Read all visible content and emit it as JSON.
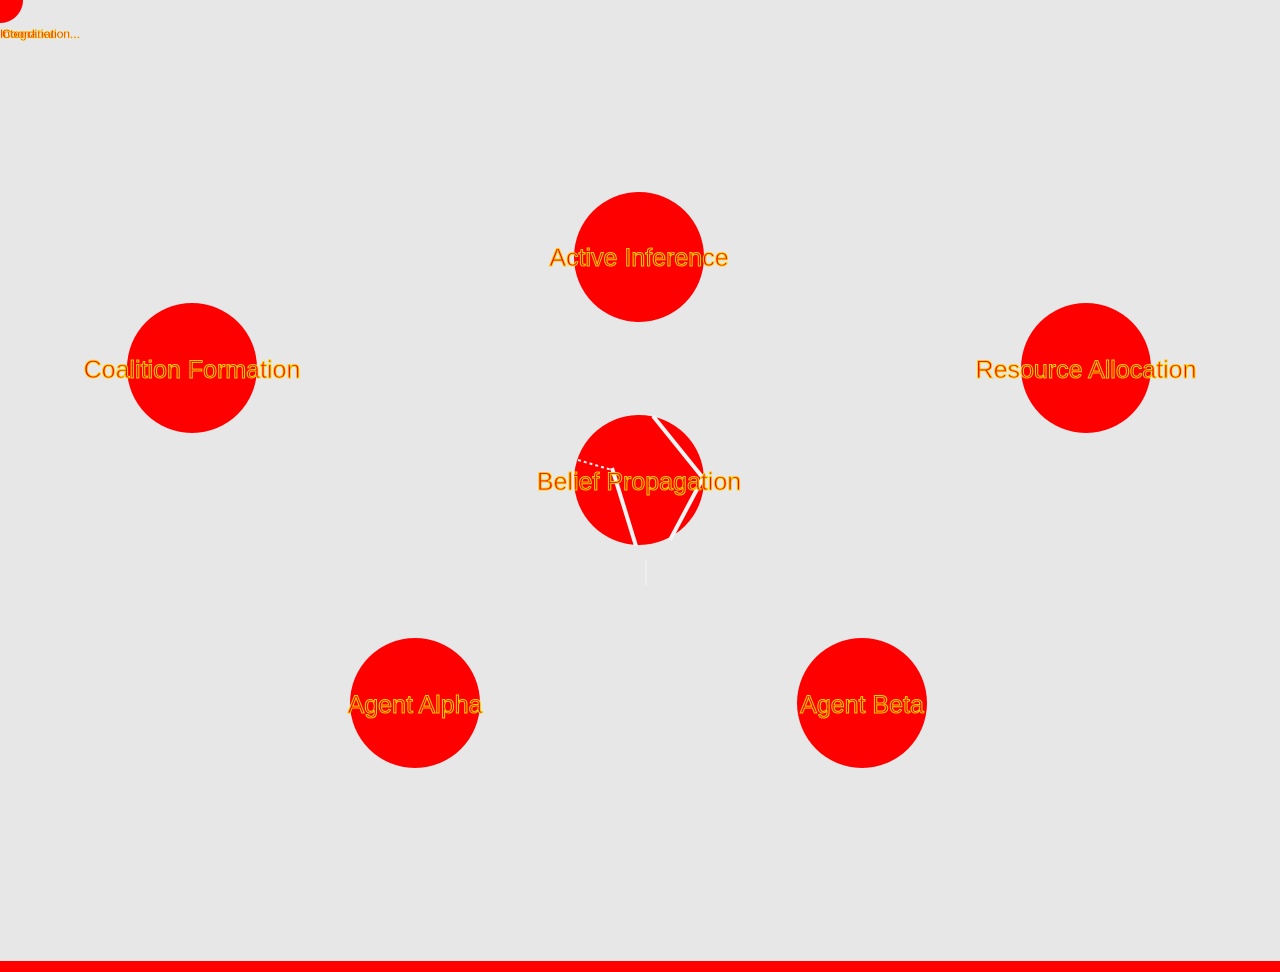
{
  "colors": {
    "background": "#e7e7e7",
    "node_fill": "#ff0000",
    "label_stroke": "#f5d300",
    "edge": "#f4f4f4",
    "bottom_bar": "#ff0000"
  },
  "corner_widget": {
    "labels": [
      "Integration",
      "Coordination..."
    ]
  },
  "nodes": {
    "active_inference": {
      "label": "Active Inference"
    },
    "coalition_formation": {
      "label": "Coalition Formation"
    },
    "resource_allocation": {
      "label": "Resource Allocation"
    },
    "belief_propagation": {
      "label": "Belief Propagation"
    },
    "agent_alpha": {
      "label": "Agent Alpha"
    },
    "agent_beta": {
      "label": "Agent Beta"
    }
  }
}
